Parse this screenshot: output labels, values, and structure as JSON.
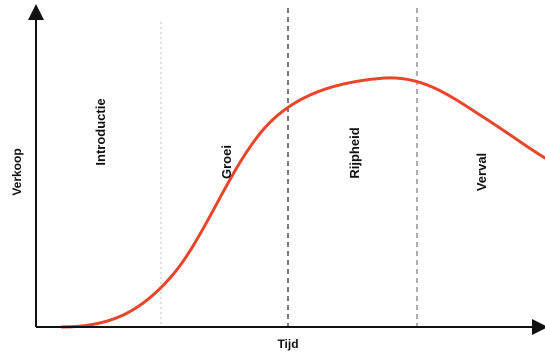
{
  "axes": {
    "y_label": "Verkoop",
    "x_label": "Tijd"
  },
  "phases": [
    {
      "label": "Introductie",
      "boundary": "dotted-light"
    },
    {
      "label": "Groei",
      "boundary": "dashed"
    },
    {
      "label": "Rijpheid",
      "boundary": "dashed-light"
    },
    {
      "label": "Verval",
      "boundary": "none"
    }
  ],
  "colors": {
    "curve": "#e8462a",
    "axis": "#111111",
    "divider_dark": "#222222",
    "divider_light": "#bfbfbf"
  }
}
